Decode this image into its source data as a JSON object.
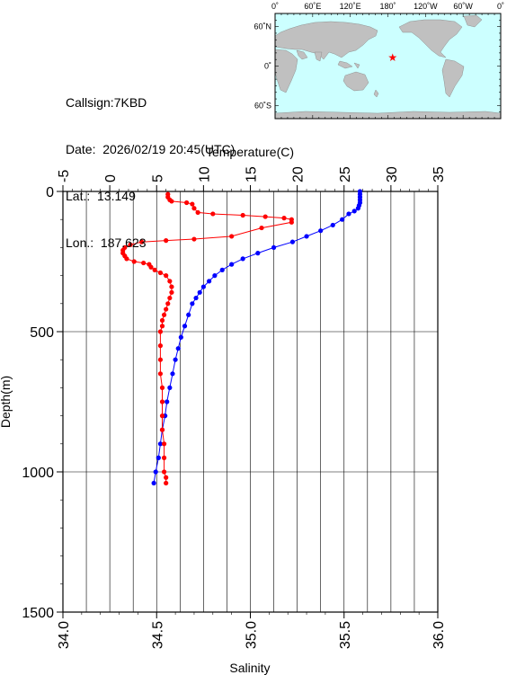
{
  "info": {
    "callsign_label": "Callsign:",
    "callsign": "7KBD",
    "date_label": "Date:",
    "date": "2026/02/19 20:45(UTC)",
    "lat_label": "Lat.:",
    "lat": "13.149",
    "lon_label": "Lon.:",
    "lon": "187.623"
  },
  "map": {
    "lon_labels": [
      "0˚",
      "60˚E",
      "120˚E",
      "180˚",
      "120˚W",
      "60˚W",
      "0˚"
    ],
    "lat_labels": [
      "60˚N",
      "0˚",
      "60˚S"
    ],
    "station_lon": 187.623,
    "station_lat": 13.149,
    "colors": {
      "ocean": "#ccffff",
      "land": "#c0c0c0",
      "marker": "#ff0000"
    }
  },
  "chart_data": {
    "type": "line",
    "xlabel_top": "Temperature(C)",
    "xlabel_bottom": "Salinity",
    "ylabel": "Depth(m)",
    "temperature_ticks": [
      "-5",
      "0",
      "5",
      "10",
      "15",
      "20",
      "25",
      "30",
      "35"
    ],
    "salinity_ticks": [
      "34.0",
      "34.5",
      "35.0",
      "35.5",
      "36.0"
    ],
    "depth_ticks": [
      "0",
      "500",
      "1000",
      "1500"
    ],
    "temperature_range": [
      -5,
      35
    ],
    "salinity_range": [
      34.0,
      36.0
    ],
    "depth_range": [
      0,
      1500
    ],
    "grid": true,
    "series": [
      {
        "color": "#0000ff",
        "axis": "temperature",
        "points": [
          [
            26.7,
            0
          ],
          [
            26.7,
            10
          ],
          [
            26.7,
            20
          ],
          [
            26.7,
            30
          ],
          [
            26.7,
            40
          ],
          [
            26.6,
            50
          ],
          [
            26.5,
            60
          ],
          [
            26.1,
            70
          ],
          [
            25.5,
            80
          ],
          [
            24.8,
            100
          ],
          [
            23.8,
            120
          ],
          [
            22.5,
            140
          ],
          [
            21.0,
            160
          ],
          [
            19.5,
            180
          ],
          [
            17.5,
            200
          ],
          [
            15.8,
            220
          ],
          [
            14.2,
            240
          ],
          [
            13.0,
            260
          ],
          [
            12.0,
            280
          ],
          [
            11.2,
            300
          ],
          [
            10.6,
            320
          ],
          [
            10.0,
            340
          ],
          [
            9.6,
            360
          ],
          [
            9.2,
            380
          ],
          [
            8.8,
            400
          ],
          [
            8.4,
            440
          ],
          [
            8.0,
            480
          ],
          [
            7.6,
            520
          ],
          [
            7.3,
            560
          ],
          [
            7.0,
            600
          ],
          [
            6.7,
            650
          ],
          [
            6.4,
            700
          ],
          [
            6.1,
            750
          ],
          [
            5.9,
            800
          ],
          [
            5.6,
            850
          ],
          [
            5.4,
            900
          ],
          [
            5.2,
            950
          ],
          [
            4.9,
            1000
          ],
          [
            4.7,
            1040
          ]
        ]
      },
      {
        "color": "#ff0000",
        "axis": "salinity",
        "points": [
          [
            34.56,
            10
          ],
          [
            34.56,
            20
          ],
          [
            34.57,
            30
          ],
          [
            34.58,
            35
          ],
          [
            34.66,
            40
          ],
          [
            34.69,
            45
          ],
          [
            34.7,
            60
          ],
          [
            34.72,
            75
          ],
          [
            34.8,
            80
          ],
          [
            34.96,
            85
          ],
          [
            35.08,
            90
          ],
          [
            35.18,
            95
          ],
          [
            35.22,
            100
          ],
          [
            35.22,
            110
          ],
          [
            35.06,
            130
          ],
          [
            34.9,
            160
          ],
          [
            34.7,
            170
          ],
          [
            34.55,
            175
          ],
          [
            34.42,
            180
          ],
          [
            34.36,
            190
          ],
          [
            34.33,
            200
          ],
          [
            34.32,
            210
          ],
          [
            34.32,
            220
          ],
          [
            34.33,
            230
          ],
          [
            34.34,
            240
          ],
          [
            34.38,
            250
          ],
          [
            34.43,
            255
          ],
          [
            34.46,
            260
          ],
          [
            34.47,
            270
          ],
          [
            34.49,
            280
          ],
          [
            34.52,
            290
          ],
          [
            34.55,
            300
          ],
          [
            34.57,
            320
          ],
          [
            34.58,
            340
          ],
          [
            34.58,
            360
          ],
          [
            34.57,
            380
          ],
          [
            34.56,
            400
          ],
          [
            34.55,
            420
          ],
          [
            34.54,
            440
          ],
          [
            34.53,
            460
          ],
          [
            34.53,
            480
          ],
          [
            34.52,
            500
          ],
          [
            34.52,
            550
          ],
          [
            34.52,
            600
          ],
          [
            34.52,
            650
          ],
          [
            34.53,
            700
          ],
          [
            34.53,
            750
          ],
          [
            34.53,
            800
          ],
          [
            34.53,
            850
          ],
          [
            34.54,
            900
          ],
          [
            34.54,
            950
          ],
          [
            34.54,
            1000
          ],
          [
            34.55,
            1020
          ],
          [
            34.55,
            1040
          ]
        ]
      }
    ]
  }
}
